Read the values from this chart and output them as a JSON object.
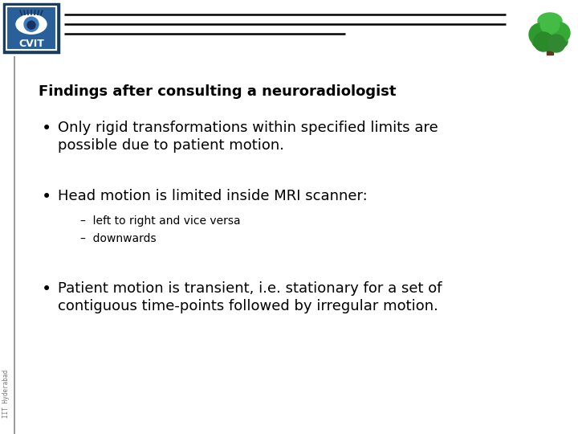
{
  "title": "Findings after consulting a neuroradiologist",
  "bullet1_line1": "Only rigid transformations within specified limits are",
  "bullet1_line2": "possible due to patient motion.",
  "bullet2": "Head motion is limited inside MRI scanner:",
  "sub1": "left to right and vice versa",
  "sub2": "downwards",
  "bullet3_line1": "Patient motion is transient, i.e. stationary for a set of",
  "bullet3_line2": "contiguous time-points followed by irregular motion.",
  "bg_color": "#ffffff",
  "text_color": "#000000",
  "header_line_color": "#000000",
  "sidebar_color": "#000000",
  "title_fontsize": 13,
  "body_fontsize": 13,
  "sub_fontsize": 10,
  "watermark": "IIT Hyderabad",
  "cvit_bg": "#2a6099",
  "cvit_border": "#1a3a5c"
}
